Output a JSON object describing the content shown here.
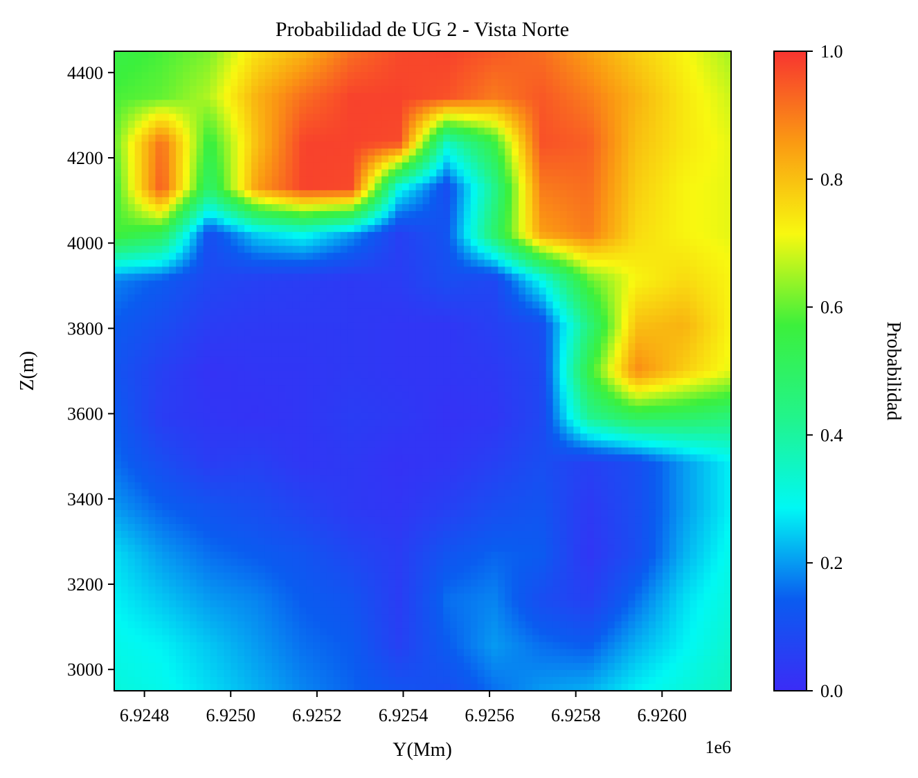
{
  "chart_data": {
    "type": "heatmap",
    "title": "Probabilidad de UG 2 - Vista Norte",
    "xlabel": "Y(Mm)",
    "ylabel": "Z(m)",
    "x_offset_label": "1e6",
    "x_range": [
      6.92473,
      6.92616
    ],
    "y_range": [
      2950,
      4450
    ],
    "x_ticks": [
      6.9248,
      6.925,
      6.9252,
      6.9254,
      6.9256,
      6.9258,
      6.926
    ],
    "x_tick_labels": [
      "6.9248",
      "6.9250",
      "6.9252",
      "6.9254",
      "6.9256",
      "6.9258",
      "6.9260"
    ],
    "y_ticks": [
      3000,
      3200,
      3400,
      3600,
      3800,
      4000,
      4200,
      4400
    ],
    "y_tick_labels": [
      "3000",
      "3200",
      "3400",
      "3600",
      "3800",
      "4000",
      "4200",
      "4400"
    ],
    "colorbar": {
      "label": "Probabilidad",
      "range": [
        0.0,
        1.0
      ],
      "ticks": [
        0.0,
        0.2,
        0.4,
        0.6,
        0.8,
        1.0
      ],
      "tick_labels": [
        "0.0",
        "0.2",
        "0.4",
        "0.6",
        "0.8",
        "1.0"
      ],
      "colormap": [
        "#3b2cf6",
        "#0a5cf0",
        "#00f8f4",
        "#22f48a",
        "#3cf03c",
        "#f8f810",
        "#fa9a12",
        "#f83430"
      ]
    },
    "grid_description": {
      "nx": 14,
      "ny": 15,
      "values": [
        [
          0.55,
          0.58,
          0.62,
          0.75,
          0.82,
          0.92,
          0.97,
          0.98,
          0.95,
          0.92,
          0.85,
          0.78,
          0.72,
          0.65
        ],
        [
          0.58,
          0.6,
          0.66,
          0.82,
          0.92,
          0.98,
          0.98,
          0.96,
          0.9,
          0.95,
          0.9,
          0.82,
          0.74,
          0.68
        ],
        [
          0.6,
          0.92,
          0.55,
          0.8,
          0.98,
          0.98,
          0.97,
          0.35,
          0.55,
          0.96,
          0.94,
          0.8,
          0.74,
          0.7
        ],
        [
          0.56,
          0.95,
          0.48,
          0.85,
          0.98,
          0.97,
          0.3,
          0.1,
          0.42,
          0.9,
          0.92,
          0.78,
          0.72,
          0.7
        ],
        [
          0.58,
          0.52,
          0.1,
          0.25,
          0.3,
          0.2,
          0.06,
          0.12,
          0.48,
          0.85,
          0.9,
          0.76,
          0.72,
          0.7
        ],
        [
          0.18,
          0.14,
          0.08,
          0.06,
          0.05,
          0.04,
          0.05,
          0.1,
          0.08,
          0.3,
          0.6,
          0.72,
          0.76,
          0.72
        ],
        [
          0.14,
          0.1,
          0.05,
          0.04,
          0.04,
          0.04,
          0.03,
          0.03,
          0.06,
          0.1,
          0.45,
          0.8,
          0.82,
          0.72
        ],
        [
          0.12,
          0.06,
          0.02,
          0.03,
          0.03,
          0.04,
          0.03,
          0.03,
          0.04,
          0.08,
          0.55,
          0.88,
          0.78,
          0.7
        ],
        [
          0.14,
          0.05,
          0.03,
          0.02,
          0.03,
          0.05,
          0.04,
          0.02,
          0.03,
          0.08,
          0.42,
          0.52,
          0.5,
          0.46
        ],
        [
          0.16,
          0.1,
          0.05,
          0.06,
          0.03,
          0.04,
          0.02,
          0.03,
          0.06,
          0.1,
          0.06,
          0.1,
          0.2,
          0.28
        ],
        [
          0.2,
          0.15,
          0.12,
          0.1,
          0.07,
          0.04,
          0.03,
          0.06,
          0.1,
          0.12,
          0.04,
          0.1,
          0.2,
          0.28
        ],
        [
          0.26,
          0.2,
          0.16,
          0.14,
          0.12,
          0.08,
          0.05,
          0.12,
          0.15,
          0.14,
          0.03,
          0.1,
          0.22,
          0.3
        ],
        [
          0.28,
          0.24,
          0.2,
          0.18,
          0.14,
          0.12,
          0.05,
          0.16,
          0.18,
          0.1,
          0.06,
          0.16,
          0.26,
          0.32
        ],
        [
          0.3,
          0.28,
          0.24,
          0.2,
          0.16,
          0.14,
          0.06,
          0.14,
          0.2,
          0.16,
          0.14,
          0.22,
          0.28,
          0.34
        ],
        [
          0.32,
          0.3,
          0.26,
          0.22,
          0.18,
          0.15,
          0.12,
          0.1,
          0.16,
          0.2,
          0.22,
          0.28,
          0.32,
          0.36
        ]
      ]
    }
  }
}
